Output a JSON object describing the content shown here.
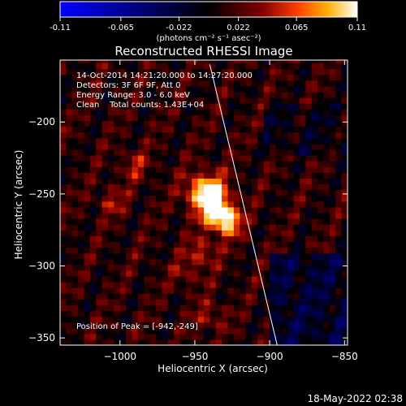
{
  "chart_data": {
    "type": "heatmap",
    "title": "Reconstructed RHESSI Image",
    "xlabel": "Heliocentric X (arcsec)",
    "ylabel": "Heliocentric Y (arcsec)",
    "xlim": [
      -1040,
      -848
    ],
    "ylim": [
      -355,
      -157
    ],
    "xticks": [
      -1000,
      -950,
      -900,
      -850
    ],
    "yticks": [
      -350,
      -300,
      -250,
      -200
    ],
    "grid": false,
    "colorbar": {
      "position": "top",
      "min": -0.11,
      "max": 0.11,
      "ticks": [
        "-0.11",
        "-0.065",
        "-0.022",
        "0.022",
        "0.065",
        "0.11"
      ],
      "units_label": "(photons cm⁻² s⁻¹ asec⁻²)"
    },
    "peak": {
      "x": -942,
      "y": -249,
      "value": 0.11
    },
    "secondary_sources": [
      {
        "x": -935,
        "y": -262,
        "value": 0.085
      },
      {
        "x": -928,
        "y": -270,
        "value": 0.07
      },
      {
        "x": -945,
        "y": -290,
        "value": 0.04
      },
      {
        "x": -990,
        "y": -230,
        "value": 0.03
      },
      {
        "x": -1005,
        "y": -255,
        "value": 0.03
      },
      {
        "x": -955,
        "y": -305,
        "value": 0.025
      },
      {
        "x": -940,
        "y": -335,
        "value": 0.03
      }
    ],
    "limb_line": {
      "x1": -940,
      "y1": -160,
      "x2": -895,
      "y2": -355
    },
    "annotations": {
      "time": "14-Oct-2014 14:21:20.000 to 14:27:20.000",
      "detectors": "Detectors: 3F 6F 9F, Att 0",
      "energy": "Energy Range: 3.0 - 6.0 keV",
      "clean": "Clean    Total counts: 1.43E+04",
      "peak_position": "Position of Peak = [-942,-249]"
    }
  },
  "colors": {
    "background": "#000000",
    "cmap": [
      "#0000ff",
      "#000080",
      "#000000",
      "#800000",
      "#ff4000",
      "#ffb000",
      "#ffffff"
    ]
  },
  "footer": {
    "timestamp": "18-May-2022 02:38"
  }
}
